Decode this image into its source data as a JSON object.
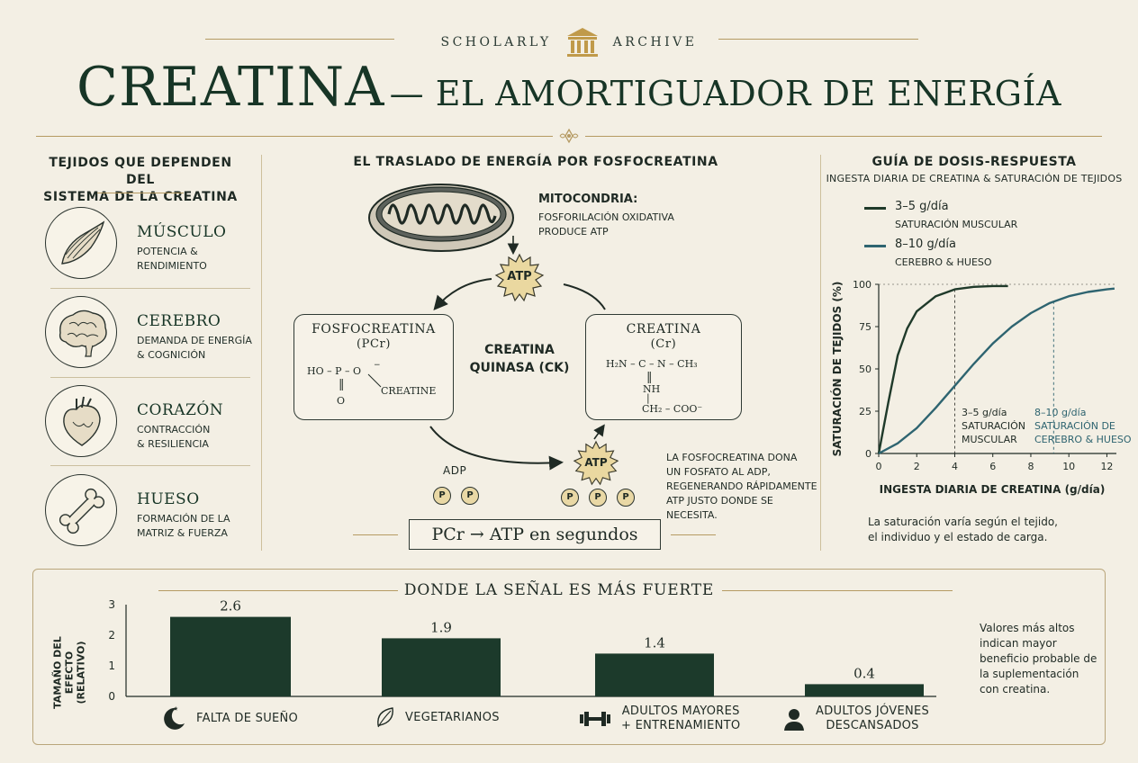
{
  "header": {
    "brand_left": "SCHOLARLY",
    "brand_right": "ARCHIVE",
    "title_main": "CREATINA",
    "title_sub": "— EL AMORTIGUADOR DE ENERGÍA"
  },
  "tissues": {
    "heading_line1": "TEJIDOS QUE DEPENDEN DEL",
    "heading_line2": "SISTEMA DE LA CREATINA",
    "items": [
      {
        "name": "MÚSCULO",
        "line1": "POTENCIA &",
        "line2": "RENDIMIENTO",
        "icon": "muscle-icon"
      },
      {
        "name": "CEREBRO",
        "line1": "DEMANDA DE ENERGÍA",
        "line2": "& COGNICIÓN",
        "icon": "brain-icon"
      },
      {
        "name": "CORAZÓN",
        "line1": "CONTRACCIÓN",
        "line2": "& RESILIENCIA",
        "icon": "heart-icon"
      },
      {
        "name": "HUESO",
        "line1": "FORMACIÓN DE LA",
        "line2": "MATRIZ & FUERZA",
        "icon": "bone-icon"
      }
    ]
  },
  "shuttle": {
    "heading": "EL TRASLADO DE ENERGÍA POR FOSFOCREATINA",
    "mito_title": "MITOCONDRIA:",
    "mito_line1": "FOSFORILACIÓN OXIDATIVA",
    "mito_line2": "PRODUCE ATP",
    "atp": "ATP",
    "pcr_name": "FOSFOCREATINA",
    "pcr_abbr": "(PCr)",
    "pcr_formula_left": "HO – P – O",
    "pcr_formula_minus": "−",
    "pcr_double": "‖",
    "pcr_oxygen": "O",
    "pcr_creatine": "CREATINE",
    "ck_line1": "CREATINA",
    "ck_line2": "QUINASA (CK)",
    "cr_name": "CREATINA",
    "cr_abbr": "(Cr)",
    "cr_row1": "H₂N – C – N – CH₃",
    "cr_double": "‖",
    "cr_row2": "NH",
    "cr_bar": "|",
    "cr_row3": "CH₂ – COO⁻",
    "adp": "ADP",
    "p": "P",
    "donate_line1": "LA FOSFOCREATINA DONA",
    "donate_line2": "UN FOSFATO AL ADP,",
    "donate_line3": "REGENERANDO RÁPIDAMENTE",
    "donate_line4": "ATP JUSTO DONDE SE NECESITA.",
    "summary": "PCr → ATP en segundos"
  },
  "dose": {
    "heading": "GUÍA DE DOSIS-RESPUESTA",
    "subheading": "INGESTA DIARIA DE CREATINA & SATURACIÓN DE TEJIDOS",
    "legend": [
      {
        "dose": "3–5 g/día",
        "label": "SATURACIÓN MUSCULAR",
        "color": "#1f3a2a"
      },
      {
        "dose": "8–10 g/día",
        "label": "CEREBRO & HUESO",
        "color": "#2e6470"
      }
    ],
    "ann1_line1": "3–5 g/día",
    "ann1_line2": "SATURACIÓN",
    "ann1_line3": "MUSCULAR",
    "ann2_line1": "8–10 g/día",
    "ann2_line2": "SATURACIÓN DE",
    "ann2_line3": "CEREBRO & HUESO",
    "note_line1": "La saturación varía según el tejido,",
    "note_line2": "el individuo y el estado de carga."
  },
  "chart_data": [
    {
      "type": "line",
      "xlabel": "INGESTA DIARIA DE CREATINA (g/día)",
      "ylabel": "SATURACIÓN DE TEJIDOS (%)",
      "xlim": [
        0,
        12.5
      ],
      "ylim": [
        0,
        100
      ],
      "xticks": [
        "0",
        "2",
        "4",
        "6",
        "8",
        "10",
        "12"
      ],
      "yticks": [
        "0",
        "25",
        "50",
        "75",
        "100"
      ],
      "series": [
        {
          "name": "3–5 g/día",
          "x": [
            0,
            0.5,
            1,
            1.5,
            2,
            3,
            4,
            5,
            6,
            6.8
          ],
          "y": [
            0,
            30,
            58,
            74,
            84,
            93,
            97,
            98.5,
            99,
            99
          ]
        },
        {
          "name": "8–10 g/día",
          "x": [
            0,
            1,
            2,
            3,
            4,
            5,
            6,
            7,
            8,
            9,
            10,
            11,
            12,
            12.4
          ],
          "y": [
            0,
            6,
            15,
            27,
            40,
            53,
            65,
            75,
            83,
            89,
            93,
            95.5,
            97,
            97.5
          ]
        }
      ]
    },
    {
      "type": "bar",
      "title": "DONDE LA SEÑAL ES MÁS FUERTE",
      "ylabel": "TAMAÑO DEL EFECTO (RELATIVO)",
      "ylim": [
        0,
        3
      ],
      "yticks": [
        "0",
        "1",
        "2",
        "3"
      ],
      "categories": [
        "FALTA DE SUEÑO",
        "VEGETARIANOS",
        "ADULTOS MAYORES + ENTRENAMIENTO",
        "ADULTOS JÓVENES DESCANSADOS"
      ],
      "values": [
        2.6,
        1.9,
        1.4,
        0.4
      ]
    }
  ],
  "bars": {
    "title": "DONDE LA SEÑAL ES MÁS FUERTE",
    "ylabel_line1": "TAMAÑO DEL EFECTO",
    "ylabel_line2": "(RELATIVO)",
    "labels": [
      {
        "line1": "FALTA DE SUEÑO",
        "line2": "",
        "icon": "moon-icon"
      },
      {
        "line1": "VEGETARIANOS",
        "line2": "",
        "icon": "leaf-icon"
      },
      {
        "line1": "ADULTOS MAYORES",
        "line2": "+ ENTRENAMIENTO",
        "icon": "dumbbell-icon"
      },
      {
        "line1": "ADULTOS JÓVENES",
        "line2": "DESCANSADOS",
        "icon": "person-icon"
      }
    ],
    "note_line1": "Valores más altos",
    "note_line2": "indican mayor",
    "note_line3": "beneficio probable de",
    "note_line4": "la suplementación",
    "note_line5": "con creatina."
  },
  "colors": {
    "background": "#f3efe4",
    "dark_green": "#1f3a2a",
    "teal": "#2e6470",
    "gold": "#b59a62",
    "atp_fill": "#ead8a0"
  }
}
